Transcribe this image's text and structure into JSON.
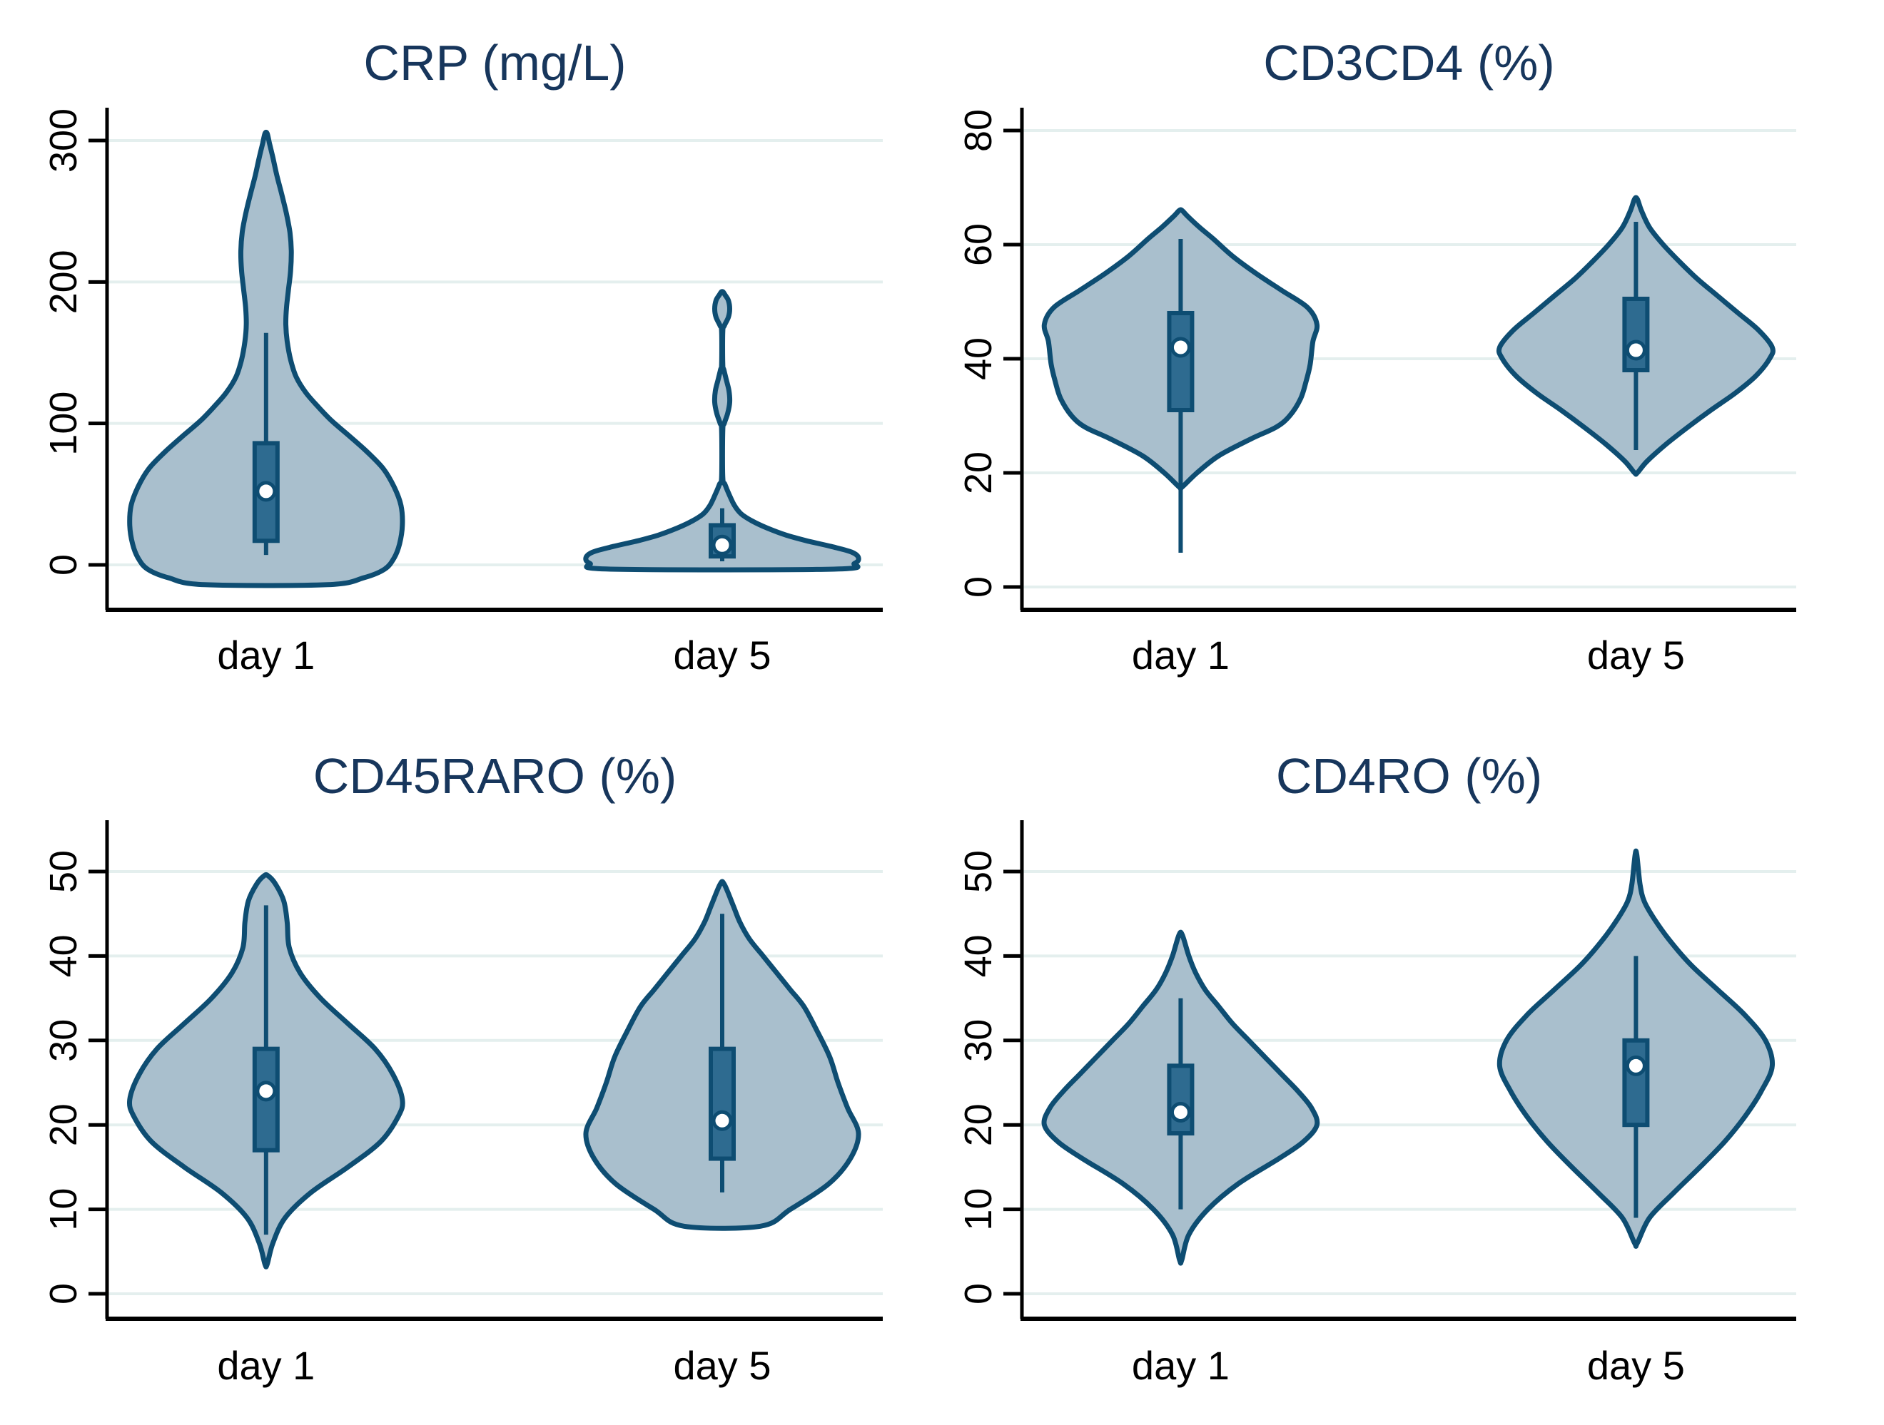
{
  "figure": {
    "background": "#ffffff"
  },
  "colors": {
    "violin_fill": "#a9bfcd",
    "violin_stroke": "#0e4d72",
    "box_fill": "#2e6b90",
    "box_stroke": "#0e4d72",
    "median_fill": "#ffffff",
    "grid": "#e4efee",
    "axis": "#000000",
    "tick_label": "#000000",
    "category_label": "#000000",
    "title": "#17365c"
  },
  "chart_data": [
    {
      "type": "violin",
      "title": "CRP (mg/L)",
      "categories": [
        "day 1",
        "day 5"
      ],
      "y_ticks": [
        0,
        100,
        200,
        300
      ],
      "ylim": [
        -35,
        320
      ],
      "grid": true,
      "legend_position": "none",
      "series": [
        {
          "category": "day 1",
          "median": 52,
          "q1": 17,
          "q3": 86,
          "whisker_low": 7,
          "whisker_high": 164,
          "density": [
            [
              -14,
              0.45
            ],
            [
              -9,
              0.72
            ],
            [
              -3,
              0.87
            ],
            [
              5,
              0.94
            ],
            [
              15,
              0.98
            ],
            [
              28,
              1.0
            ],
            [
              42,
              0.99
            ],
            [
              55,
              0.94
            ],
            [
              68,
              0.86
            ],
            [
              80,
              0.74
            ],
            [
              92,
              0.6
            ],
            [
              102,
              0.48
            ],
            [
              112,
              0.38
            ],
            [
              122,
              0.29
            ],
            [
              133,
              0.22
            ],
            [
              145,
              0.18
            ],
            [
              158,
              0.155
            ],
            [
              170,
              0.145
            ],
            [
              182,
              0.15
            ],
            [
              195,
              0.165
            ],
            [
              208,
              0.18
            ],
            [
              222,
              0.185
            ],
            [
              235,
              0.175
            ],
            [
              248,
              0.15
            ],
            [
              262,
              0.115
            ],
            [
              275,
              0.08
            ],
            [
              288,
              0.05
            ],
            [
              298,
              0.025
            ],
            [
              305,
              0.008
            ]
          ]
        },
        {
          "category": "day 5",
          "median": 14,
          "q1": 6,
          "q3": 28,
          "whisker_low": 2.5,
          "whisker_high": 40,
          "density": [
            [
              -3,
              0.82
            ],
            [
              1,
              0.97
            ],
            [
              5,
              1.0
            ],
            [
              9,
              0.95
            ],
            [
              13,
              0.8
            ],
            [
              17,
              0.62
            ],
            [
              21,
              0.47
            ],
            [
              26,
              0.33
            ],
            [
              31,
              0.22
            ],
            [
              36,
              0.14
            ],
            [
              42,
              0.09
            ],
            [
              50,
              0.05
            ],
            [
              57,
              0.02
            ],
            [
              62,
              0.004
            ],
            [
              95,
              0.004
            ],
            [
              100,
              0.015
            ],
            [
              107,
              0.04
            ],
            [
              115,
              0.055
            ],
            [
              123,
              0.05
            ],
            [
              131,
              0.03
            ],
            [
              138,
              0.012
            ],
            [
              142,
              0.004
            ],
            [
              165,
              0.004
            ],
            [
              169,
              0.015
            ],
            [
              175,
              0.045
            ],
            [
              181,
              0.055
            ],
            [
              187,
              0.045
            ],
            [
              191,
              0.02
            ],
            [
              193,
              0.006
            ]
          ]
        }
      ]
    },
    {
      "type": "violin",
      "title": "CD3CD4 (%)",
      "categories": [
        "day 1",
        "day 5"
      ],
      "y_ticks": [
        0,
        20,
        40,
        60,
        80
      ],
      "ylim": [
        -4,
        84
      ],
      "grid": true,
      "legend_position": "none",
      "series": [
        {
          "category": "day 1",
          "median": 42,
          "q1": 31,
          "q3": 48,
          "whisker_low": 6,
          "whisker_high": 61,
          "density": [
            [
              17.5,
              0.01
            ],
            [
              20,
              0.12
            ],
            [
              23,
              0.28
            ],
            [
              26,
              0.52
            ],
            [
              28,
              0.7
            ],
            [
              30,
              0.8
            ],
            [
              33,
              0.88
            ],
            [
              36,
              0.92
            ],
            [
              39,
              0.95
            ],
            [
              43,
              0.97
            ],
            [
              46,
              1.0
            ],
            [
              49,
              0.93
            ],
            [
              52,
              0.74
            ],
            [
              55,
              0.55
            ],
            [
              58,
              0.38
            ],
            [
              61,
              0.24
            ],
            [
              63,
              0.14
            ],
            [
              65,
              0.05
            ],
            [
              66,
              0.01
            ]
          ]
        },
        {
          "category": "day 5",
          "median": 41.5,
          "q1": 38,
          "q3": 50.5,
          "whisker_low": 24,
          "whisker_high": 64,
          "density": [
            [
              20,
              0.01
            ],
            [
              22,
              0.08
            ],
            [
              25,
              0.22
            ],
            [
              28,
              0.38
            ],
            [
              31,
              0.55
            ],
            [
              34,
              0.73
            ],
            [
              37,
              0.88
            ],
            [
              40,
              0.98
            ],
            [
              42,
              1.0
            ],
            [
              45,
              0.9
            ],
            [
              48,
              0.75
            ],
            [
              51,
              0.6
            ],
            [
              54,
              0.45
            ],
            [
              57,
              0.32
            ],
            [
              60,
              0.2
            ],
            [
              63,
              0.1
            ],
            [
              66,
              0.04
            ],
            [
              68,
              0.01
            ]
          ]
        }
      ]
    },
    {
      "type": "violin",
      "title": "CD45RARO (%)",
      "categories": [
        "day 1",
        "day 5"
      ],
      "y_ticks": [
        0,
        10,
        20,
        30,
        40,
        50
      ],
      "ylim": [
        -3,
        53
      ],
      "grid": true,
      "legend_position": "none",
      "series": [
        {
          "category": "day 1",
          "median": 24,
          "q1": 17,
          "q3": 29,
          "whisker_low": 7,
          "whisker_high": 46,
          "density": [
            [
              3.5,
              0.008
            ],
            [
              6,
              0.05
            ],
            [
              9,
              0.14
            ],
            [
              12,
              0.33
            ],
            [
              15,
              0.6
            ],
            [
              18,
              0.84
            ],
            [
              21,
              0.97
            ],
            [
              23,
              1.0
            ],
            [
              26,
              0.93
            ],
            [
              29,
              0.8
            ],
            [
              32,
              0.6
            ],
            [
              35,
              0.4
            ],
            [
              38,
              0.25
            ],
            [
              41,
              0.17
            ],
            [
              44,
              0.155
            ],
            [
              46.5,
              0.13
            ],
            [
              48.5,
              0.07
            ],
            [
              49.5,
              0.015
            ]
          ]
        },
        {
          "category": "day 5",
          "median": 20.5,
          "q1": 16,
          "q3": 29,
          "whisker_low": 12,
          "whisker_high": 45,
          "density": [
            [
              8,
              0.28
            ],
            [
              10,
              0.5
            ],
            [
              13,
              0.78
            ],
            [
              16,
              0.94
            ],
            [
              19,
              1.0
            ],
            [
              22,
              0.92
            ],
            [
              25,
              0.85
            ],
            [
              28,
              0.79
            ],
            [
              31,
              0.7
            ],
            [
              34,
              0.6
            ],
            [
              36,
              0.5
            ],
            [
              38,
              0.4
            ],
            [
              40,
              0.3
            ],
            [
              42,
              0.2
            ],
            [
              44,
              0.13
            ],
            [
              46,
              0.08
            ],
            [
              48.5,
              0.015
            ]
          ]
        }
      ]
    },
    {
      "type": "violin",
      "title": "CD4RO (%)",
      "categories": [
        "day 1",
        "day 5"
      ],
      "y_ticks": [
        0,
        10,
        20,
        30,
        40,
        50
      ],
      "ylim": [
        -3,
        55
      ],
      "grid": true,
      "legend_position": "none",
      "series": [
        {
          "category": "day 1",
          "median": 21.5,
          "q1": 19,
          "q3": 27,
          "whisker_low": 10,
          "whisker_high": 35,
          "density": [
            [
              4,
              0.008
            ],
            [
              7,
              0.06
            ],
            [
              10,
              0.2
            ],
            [
              13,
              0.42
            ],
            [
              16,
              0.72
            ],
            [
              18,
              0.9
            ],
            [
              20,
              1.0
            ],
            [
              22,
              0.96
            ],
            [
              24,
              0.86
            ],
            [
              26,
              0.74
            ],
            [
              28,
              0.62
            ],
            [
              30,
              0.5
            ],
            [
              32,
              0.38
            ],
            [
              34,
              0.28
            ],
            [
              36,
              0.18
            ],
            [
              38,
              0.11
            ],
            [
              40,
              0.06
            ],
            [
              42.5,
              0.012
            ]
          ]
        },
        {
          "category": "day 5",
          "median": 27,
          "q1": 20,
          "q3": 30,
          "whisker_low": 9,
          "whisker_high": 40,
          "density": [
            [
              6,
              0.01
            ],
            [
              9,
              0.1
            ],
            [
              12,
              0.28
            ],
            [
              15,
              0.47
            ],
            [
              18,
              0.65
            ],
            [
              21,
              0.8
            ],
            [
              24,
              0.92
            ],
            [
              27,
              1.0
            ],
            [
              30,
              0.95
            ],
            [
              33,
              0.8
            ],
            [
              36,
              0.6
            ],
            [
              39,
              0.4
            ],
            [
              42,
              0.24
            ],
            [
              44.5,
              0.13
            ],
            [
              46.5,
              0.06
            ],
            [
              48.5,
              0.03
            ],
            [
              52,
              0.006
            ]
          ]
        }
      ]
    }
  ]
}
